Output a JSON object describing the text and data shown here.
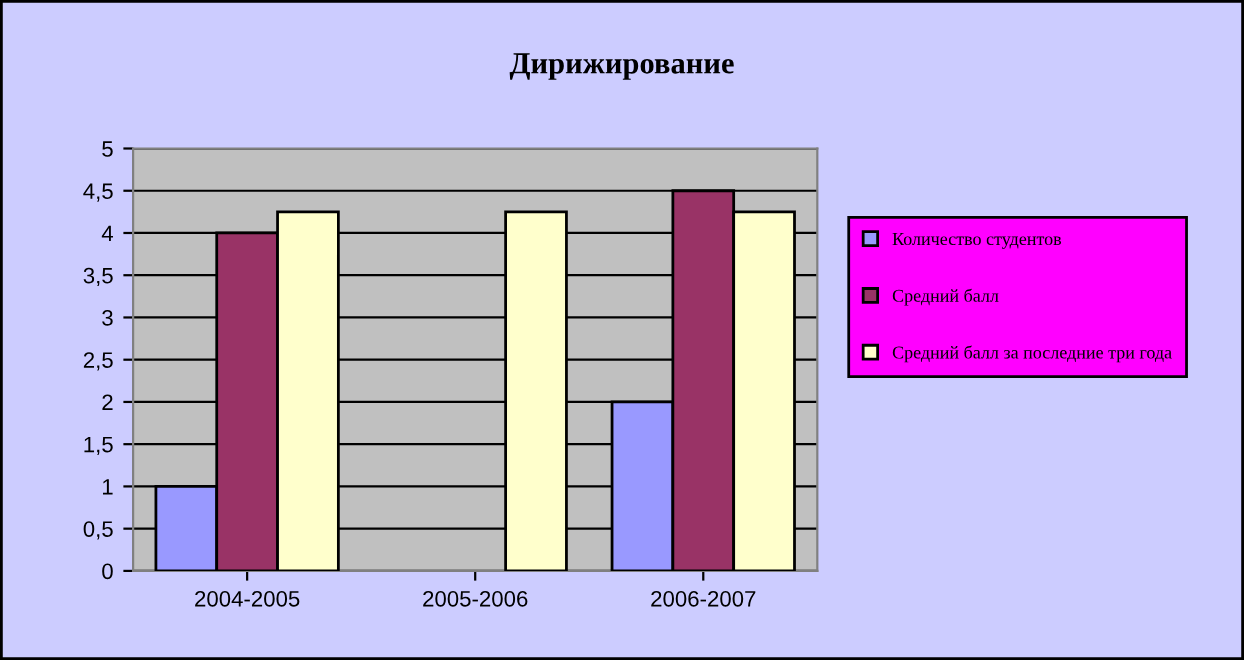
{
  "chart_data": {
    "type": "bar",
    "title": "Дирижирование",
    "categories": [
      "2004-2005",
      "2005-2006",
      "2006-2007"
    ],
    "series": [
      {
        "name": "Количество студентов",
        "color": "#9999ff",
        "values": [
          1,
          null,
          2
        ]
      },
      {
        "name": "Средний балл",
        "color": "#993366",
        "values": [
          4,
          null,
          4.5
        ]
      },
      {
        "name": "Средний балл за последние три года",
        "color": "#ffffcc",
        "values": [
          4.25,
          4.25,
          4.25
        ]
      }
    ],
    "ylim": [
      0,
      5
    ],
    "yticks": [
      0,
      {
        "value": 0.5,
        "label": "0,5"
      },
      1,
      {
        "value": 1.5,
        "label": "1,5"
      },
      2,
      {
        "value": 2.5,
        "label": "2,5"
      },
      3,
      {
        "value": 3.5,
        "label": "3,5"
      },
      4,
      {
        "value": 4.5,
        "label": "4,5"
      },
      5
    ],
    "grid": "y",
    "legend": "right"
  }
}
